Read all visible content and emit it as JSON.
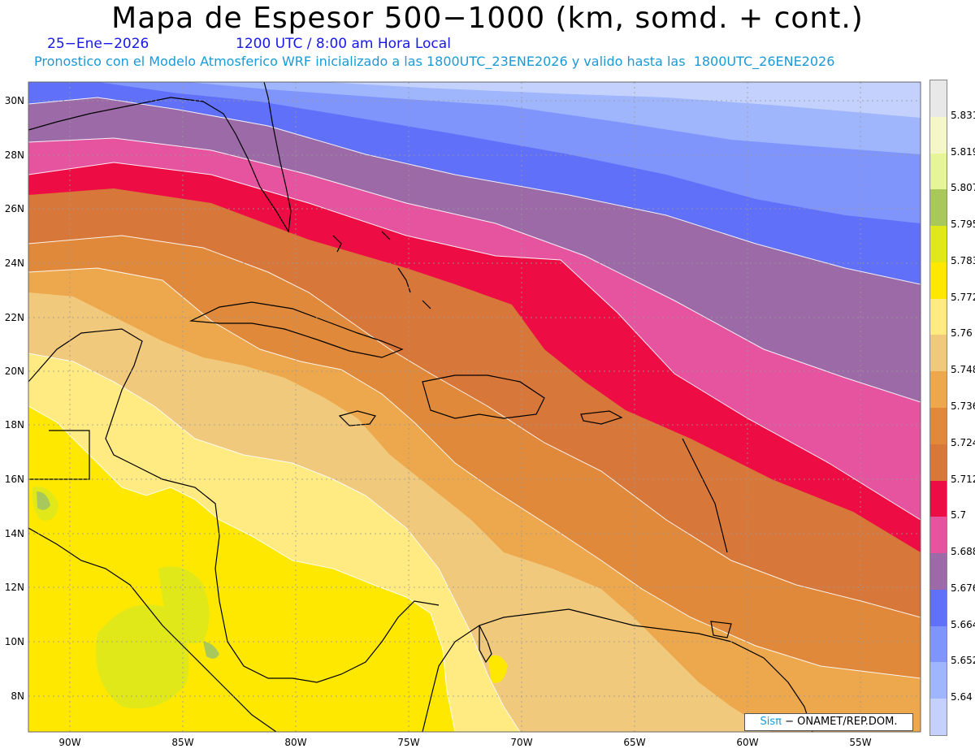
{
  "header": {
    "title": "Mapa de Espesor 500−1000 (km, somd. + cont.)",
    "date": "25−Ene−2026",
    "time": "1200 UTC / 8:00 am Hora Local",
    "forecast": "Pronostico con el Modelo Atmosferico WRF inicializado a las 1800UTC_23ENE2026 y valido hasta las  1800UTC_26ENE2026"
  },
  "axes": {
    "lat_labels": [
      "30N",
      "28N",
      "26N",
      "24N",
      "22N",
      "20N",
      "18N",
      "16N",
      "14N",
      "12N",
      "10N",
      "8N"
    ],
    "lon_labels": [
      "90W",
      "85W",
      "80W",
      "75W",
      "70W",
      "65W",
      "60W",
      "55W"
    ]
  },
  "legend": {
    "labels": [
      "5.831",
      "5.819",
      "5.807",
      "5.795",
      "5.783",
      "5.772",
      "5.76",
      "5.748",
      "5.736",
      "5.724",
      "5.712",
      "5.7",
      "5.688",
      "5.676",
      "5.664",
      "5.652",
      "5.64"
    ],
    "colors_top_to_bottom": [
      "#e8e8e8",
      "#f6f7c8",
      "#e6f59a",
      "#a8c85c",
      "#e0e81a",
      "#ffe800",
      "#ffeb82",
      "#f1c97d",
      "#eda84d",
      "#e1893a",
      "#d8773a",
      "#ee0c44",
      "#e6539f",
      "#9c6aa7",
      "#6070f8",
      "#7f95fc",
      "#9fb5fc",
      "#c3d1fc"
    ]
  },
  "credit": {
    "brand": "Sisπ",
    "org": "− ONAMET/REP.DOM."
  },
  "colors": {
    "c5640": "#c3d1fc",
    "c5652": "#9fb5fc",
    "c5664": "#7f95fc",
    "c5676": "#6070f8",
    "c5688": "#9c6aa7",
    "c5700": "#e6539f",
    "c5712": "#ee0c44",
    "c5724": "#d8773a",
    "c5736": "#e1893a",
    "c5748": "#eda84d",
    "c5760": "#f1c97d",
    "c5772": "#ffeb82",
    "c5783": "#ffe800",
    "c5795": "#e0e81a",
    "c5807": "#a8c85c"
  }
}
